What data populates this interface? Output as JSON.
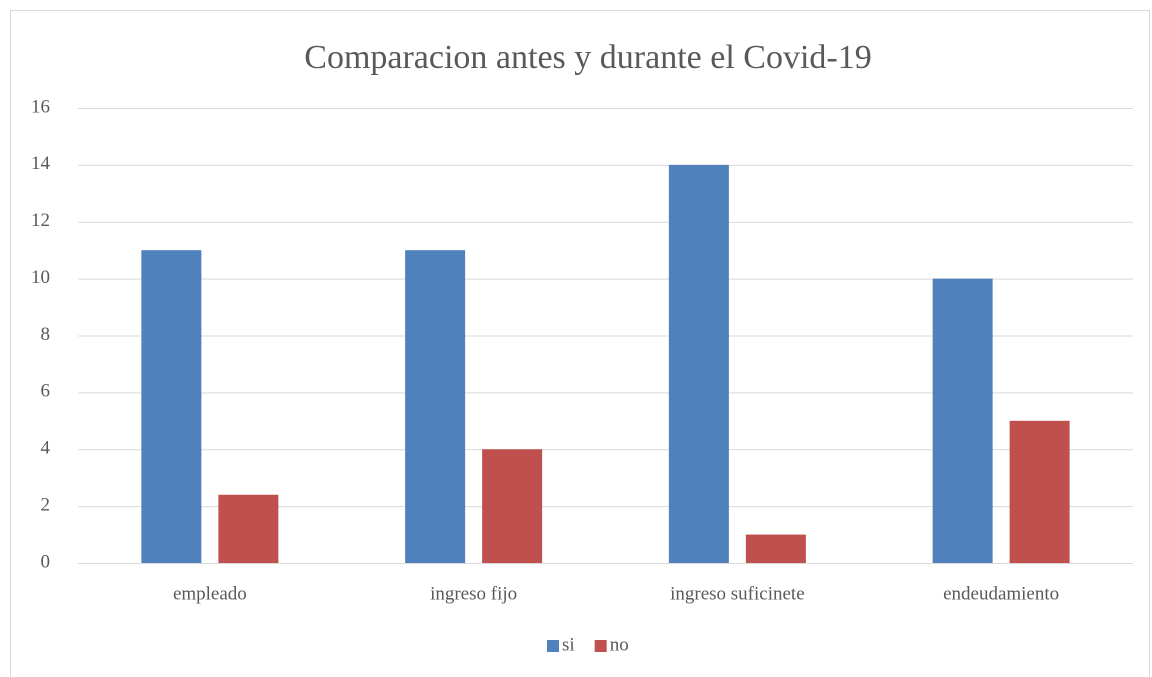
{
  "chart_data": {
    "type": "bar",
    "title": "Comparacion antes y durante el Covid-19",
    "categories": [
      "empleado",
      "ingreso fijo",
      "ingreso suficinete",
      "endeudamiento"
    ],
    "series": [
      {
        "name": "si",
        "color": "#4f81bd",
        "values": [
          11,
          11,
          14,
          10
        ]
      },
      {
        "name": "no",
        "color": "#c0504d",
        "values": [
          2.4,
          4,
          1,
          5
        ]
      }
    ],
    "ylim": [
      0,
      16
    ],
    "yticks": [
      0,
      2,
      4,
      6,
      8,
      10,
      12,
      14,
      16
    ],
    "grid": true,
    "legend": "bottom"
  }
}
